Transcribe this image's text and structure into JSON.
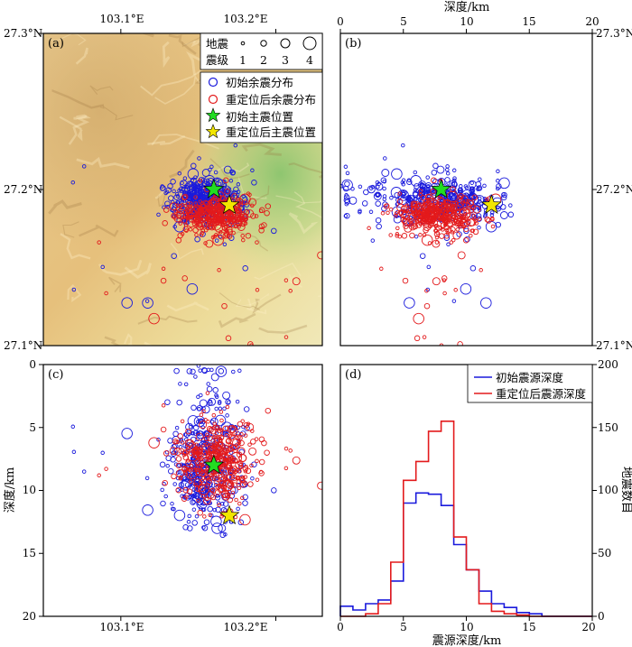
{
  "colors": {
    "initial": "#1a1adc",
    "relocated": "#e31a1c",
    "initial_mainshock": "#22dd22",
    "relocated_mainshock": "#f2e600"
  },
  "panels": {
    "a": {
      "label": "(a)"
    },
    "b": {
      "label": "(b)"
    },
    "c": {
      "label": "(c)"
    },
    "d": {
      "label": "(d)"
    }
  },
  "legend_a": {
    "mag_title_1": "地震",
    "mag_title_2": "震级",
    "mags": [
      "1",
      "2",
      "3",
      "4"
    ],
    "initial_aftershocks": "初始余震分布",
    "relocated_aftershocks": "重定位后余震分布",
    "initial_mainshock": "初始主震位置",
    "relocated_mainshock": "重定位后主震位置"
  },
  "legend_d": {
    "initial": "初始震源深度",
    "relocated": "重定位后震源深度"
  },
  "axes": {
    "lon_ticks": [
      "103.1°E",
      "103.2°E"
    ],
    "lat_ticks": [
      "27.3°N",
      "27.2°N",
      "27.1°N"
    ],
    "depth_ticks_top": [
      "0",
      "5",
      "10",
      "15",
      "20"
    ],
    "depth_ticks_c": [
      "0",
      "5",
      "10",
      "15",
      "20"
    ],
    "depth_ticks_d": [
      "0",
      "5",
      "10",
      "15",
      "20"
    ],
    "count_ticks": [
      "0",
      "50",
      "100",
      "150",
      "200"
    ],
    "depth_label_top": "深度/km",
    "depth_label_c": "深度/km",
    "depth_label_d": "震源深度/km",
    "count_label": "地震数目"
  },
  "chart_data": [
    {
      "type": "scatter",
      "panel": "a",
      "xlabel": "",
      "ylabel": "",
      "xlim": [
        103.05,
        103.23
      ],
      "ylim": [
        27.1,
        27.3
      ],
      "mainshock_initial": {
        "lon": 103.16,
        "lat": 27.2
      },
      "mainshock_relocated": {
        "lon": 103.17,
        "lat": 27.19
      },
      "cluster_initial": {
        "center_lon": 103.155,
        "center_lat": 27.193,
        "spread_lon": 0.012,
        "spread_lat": 0.008
      },
      "cluster_relocated": {
        "center_lon": 103.162,
        "center_lat": 27.183,
        "spread_lon": 0.012,
        "spread_lat": 0.006
      }
    },
    {
      "type": "scatter",
      "panel": "b",
      "xlabel": "深度/km",
      "xlim": [
        0,
        20
      ],
      "ylim": [
        27.1,
        27.3
      ],
      "mainshock_initial": {
        "depth": 8.0,
        "lat": 27.2
      },
      "mainshock_relocated": {
        "depth": 12.0,
        "lat": 27.19
      }
    },
    {
      "type": "scatter",
      "panel": "c",
      "ylabel": "深度/km",
      "xlim": [
        103.05,
        103.23
      ],
      "ylim": [
        20,
        0
      ],
      "mainshock_initial": {
        "lon": 103.16,
        "depth": 8.0
      },
      "mainshock_relocated": {
        "lon": 103.17,
        "depth": 12.0
      }
    },
    {
      "type": "histogram",
      "panel": "d",
      "xlabel": "震源深度/km",
      "ylabel": "地震数目",
      "xlim": [
        0,
        20
      ],
      "ylim": [
        0,
        200
      ],
      "bin_edges": [
        0,
        1,
        2,
        3,
        4,
        5,
        6,
        7,
        8,
        9,
        10,
        11,
        12,
        13,
        14,
        15,
        16,
        17,
        18,
        19,
        20
      ],
      "series": [
        {
          "name": "初始震源深度",
          "values": [
            8,
            5,
            10,
            13,
            28,
            90,
            98,
            97,
            88,
            57,
            37,
            20,
            10,
            7,
            3,
            2,
            0,
            0,
            0,
            0
          ]
        },
        {
          "name": "重定位后震源深度",
          "values": [
            0,
            0,
            2,
            10,
            43,
            108,
            123,
            147,
            155,
            63,
            37,
            10,
            4,
            2,
            1,
            0,
            0,
            0,
            0,
            0
          ]
        }
      ]
    }
  ]
}
